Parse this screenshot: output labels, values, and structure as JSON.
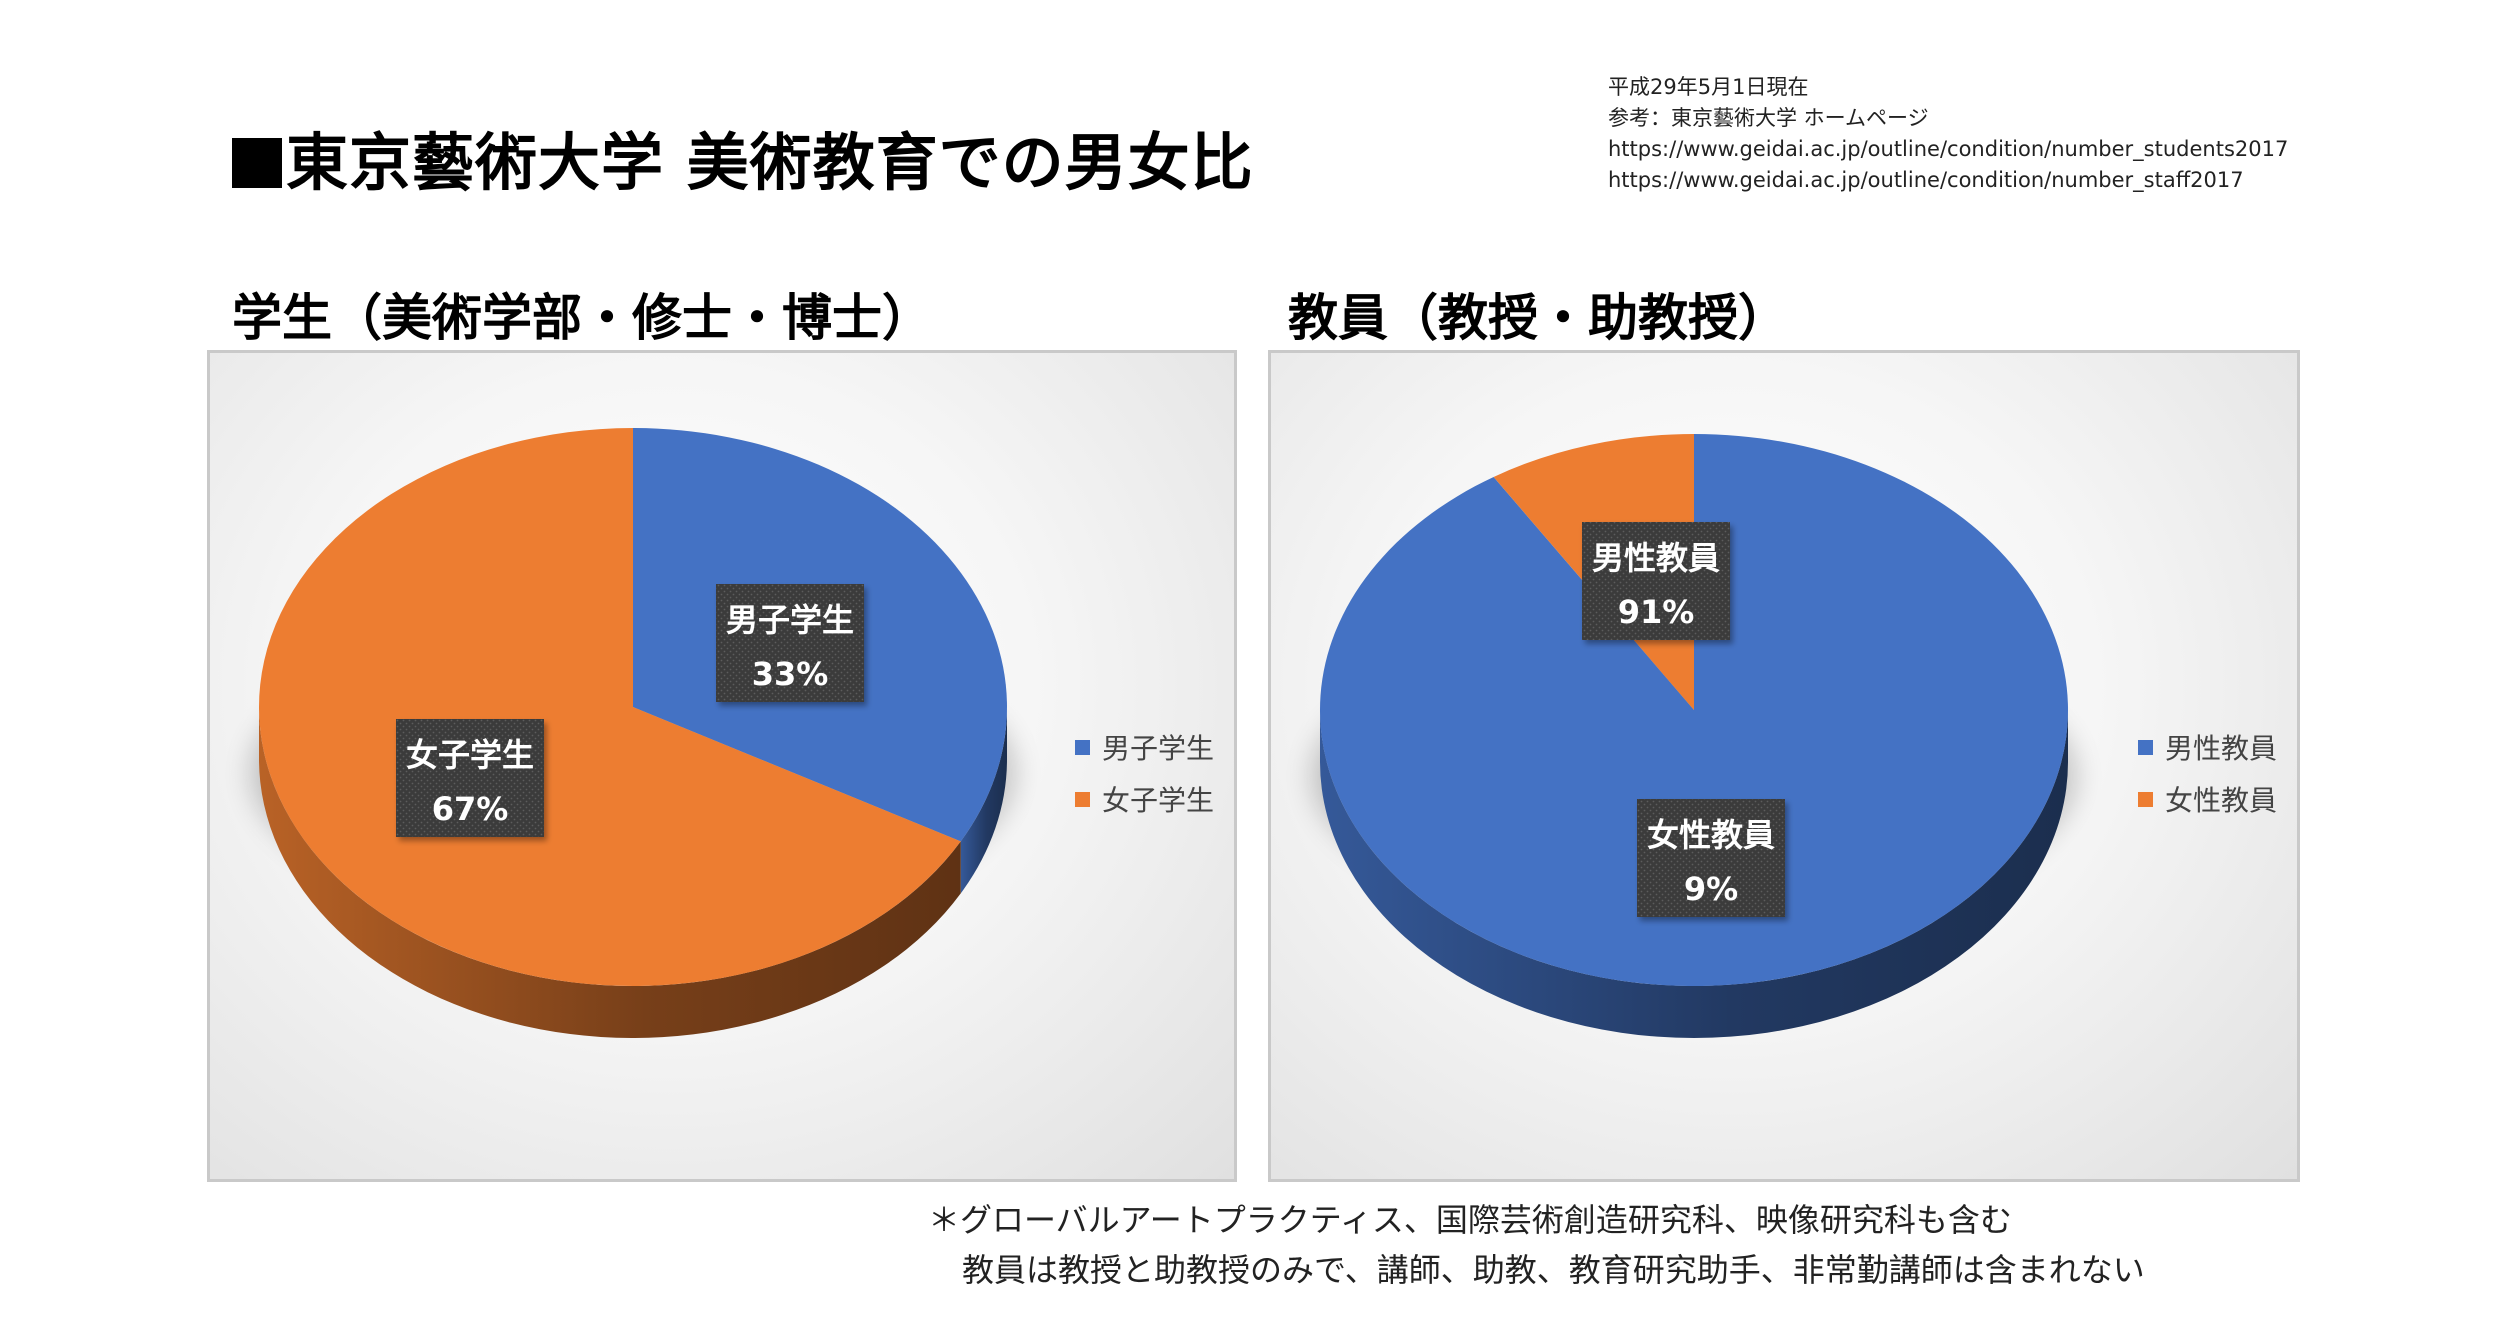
{
  "title": "東京藝術大学 美術教育での男女比",
  "source": {
    "lines": [
      "平成29年5月1日現在",
      "参考：東京藝術大学 ホームページ",
      "https://www.geidai.ac.jp/outline/condition/number_students2017",
      "https://www.geidai.ac.jp/outline/condition/number_staff2017"
    ]
  },
  "colors": {
    "blue": "#4472c4",
    "orange": "#ed7d31",
    "label_bg": "#3a3a3a"
  },
  "chart_data": [
    {
      "type": "pie",
      "title": "学生（美術学部・修士・博士）",
      "categories": [
        "男子学生",
        "女子学生"
      ],
      "values": [
        33,
        67
      ],
      "data_labels": [
        {
          "name": "男子学生",
          "value": "33%"
        },
        {
          "name": "女子学生",
          "value": "67%"
        }
      ],
      "colors": [
        "#4472c4",
        "#ed7d31"
      ],
      "legend": {
        "position": "right",
        "entries": [
          "男子学生",
          "女子学生"
        ]
      },
      "style": "3d"
    },
    {
      "type": "pie",
      "title": "教員（教授・助教授）",
      "categories": [
        "男性教員",
        "女性教員"
      ],
      "values": [
        91,
        9
      ],
      "data_labels": [
        {
          "name": "男性教員",
          "value": "91%"
        },
        {
          "name": "女性教員",
          "value": "9%"
        }
      ],
      "colors": [
        "#4472c4",
        "#ed7d31"
      ],
      "legend": {
        "position": "right",
        "entries": [
          "男性教員",
          "女性教員"
        ]
      },
      "style": "3d"
    }
  ],
  "footnote": {
    "line1": "＊グローバルアートプラクティス、国際芸術創造研究科、映像研究科も含む",
    "line2": "教員は教授と助教授のみで、講師、助教、教育研究助手、非常勤講師は含まれない"
  }
}
